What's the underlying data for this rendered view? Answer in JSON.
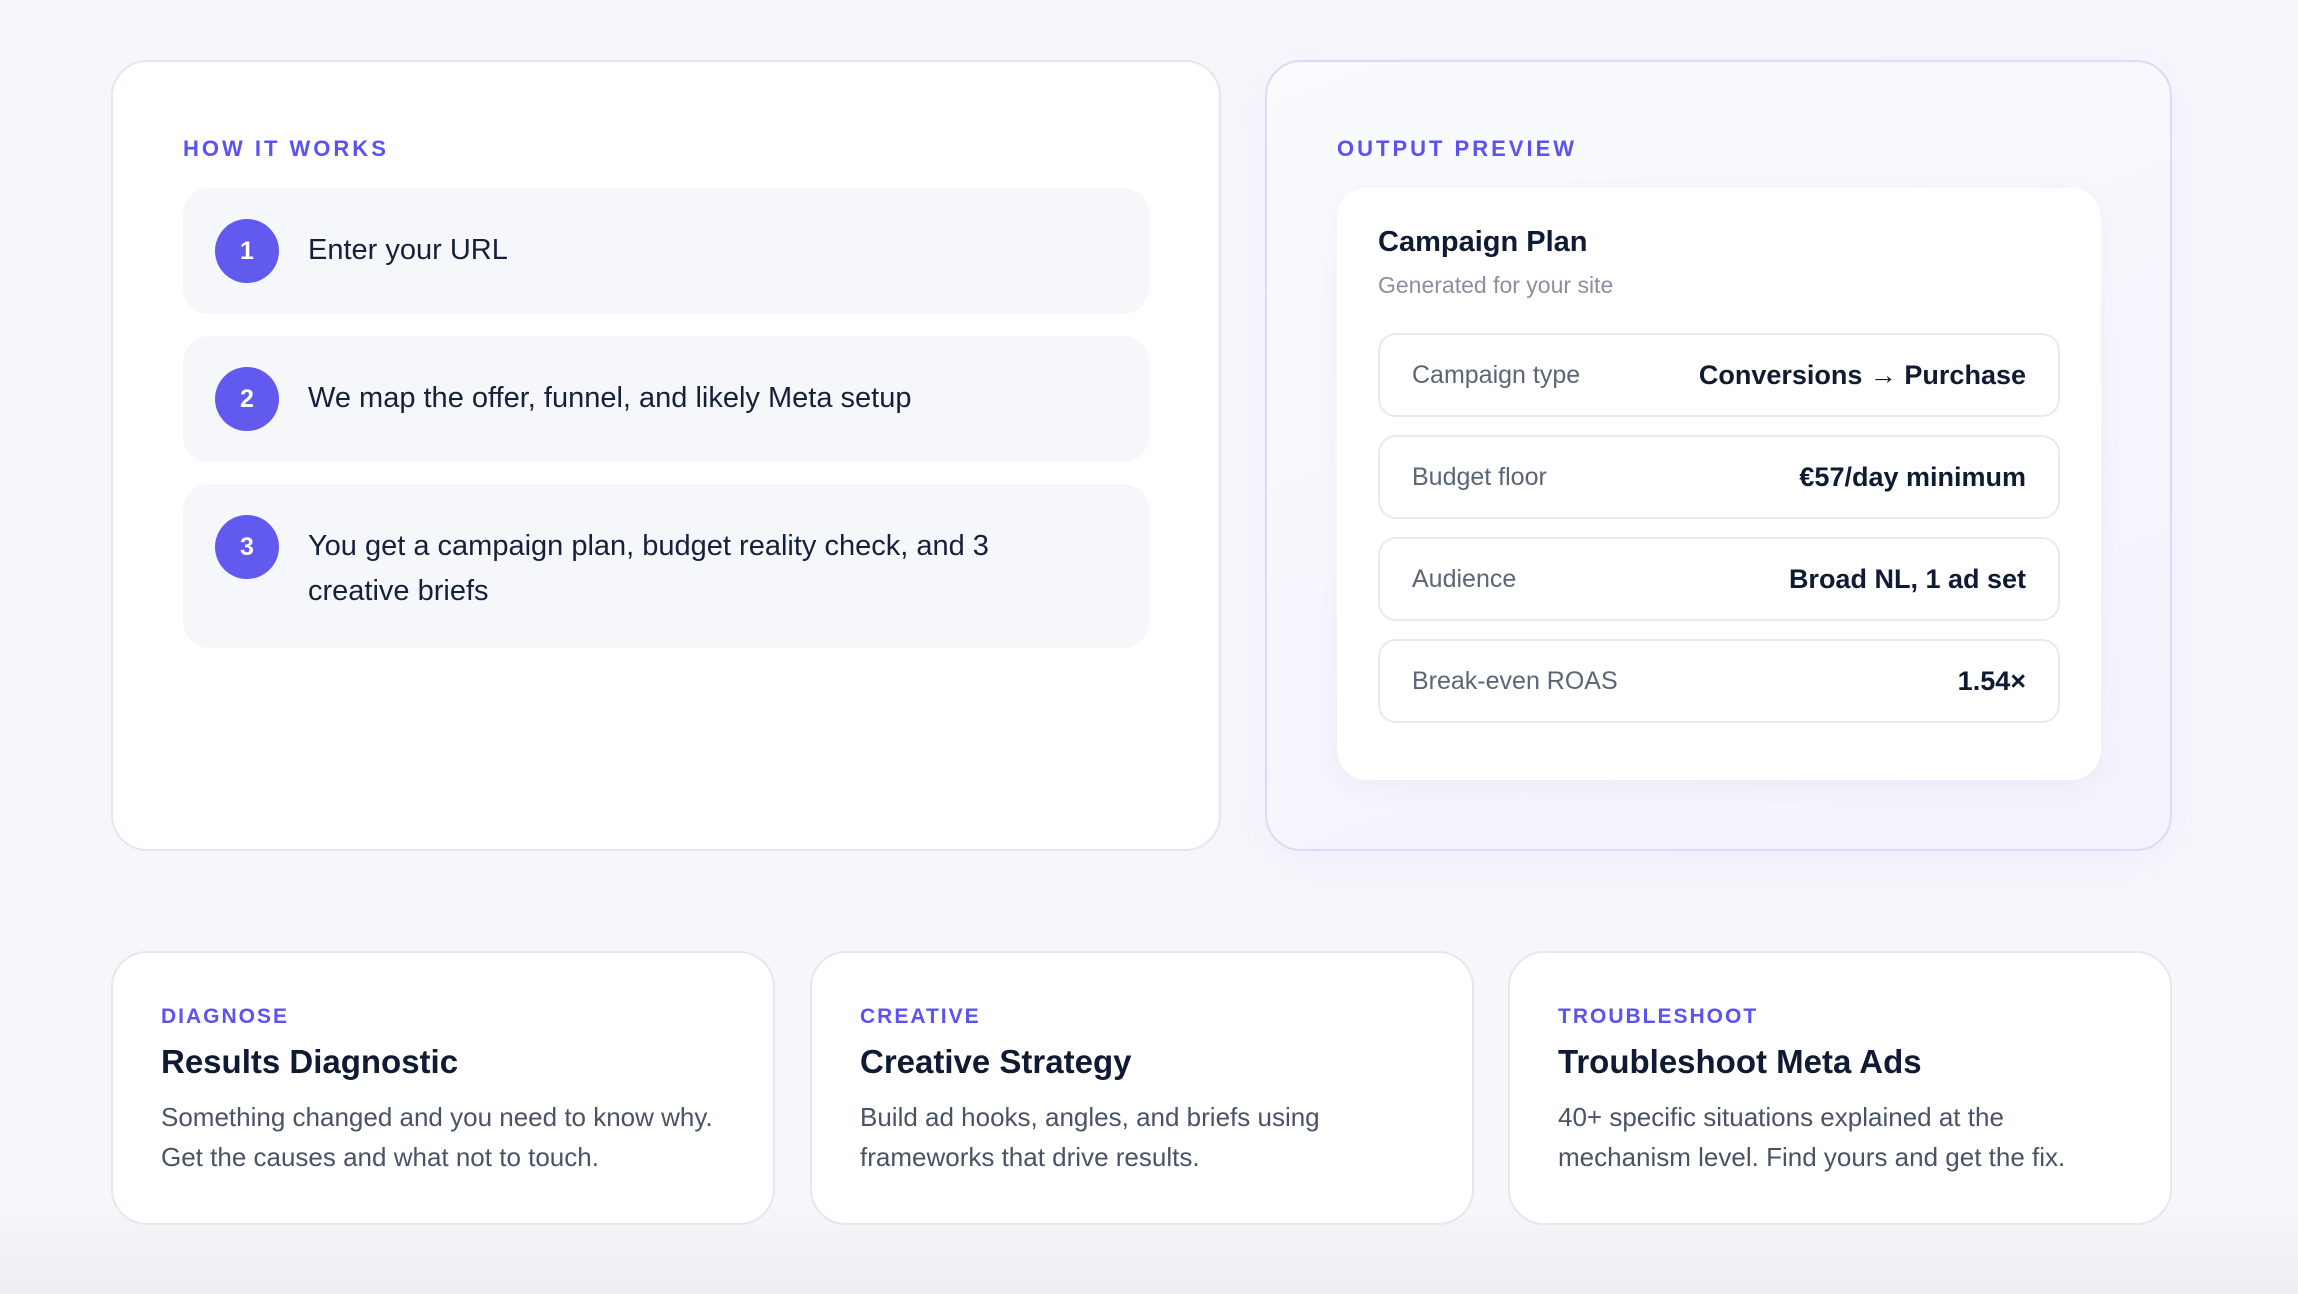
{
  "how_it_works": {
    "heading": "HOW IT WORKS",
    "steps": [
      {
        "number": "1",
        "text": "Enter your URL"
      },
      {
        "number": "2",
        "text": "We map the offer, funnel, and likely Meta setup"
      },
      {
        "number": "3",
        "text": "You get a campaign plan, budget reality check, and 3 creative briefs"
      }
    ]
  },
  "output_preview": {
    "heading": "OUTPUT PREVIEW",
    "title": "Campaign Plan",
    "subtitle": "Generated for your site",
    "rows": [
      {
        "label": "Campaign type",
        "value": "Conversions → Purchase"
      },
      {
        "label": "Budget floor",
        "value": "€57/day minimum"
      },
      {
        "label": "Audience",
        "value": "Broad NL, 1 ad set"
      },
      {
        "label": "Break-even ROAS",
        "value": "1.54×"
      }
    ]
  },
  "features": [
    {
      "label": "DIAGNOSE",
      "title": "Results Diagnostic",
      "description": "Something changed and you need to know why. Get the causes and what not to touch."
    },
    {
      "label": "CREATIVE",
      "title": "Creative Strategy",
      "description": "Build ad hooks, angles, and briefs using frameworks that drive results."
    },
    {
      "label": "TROUBLESHOOT",
      "title": "Troubleshoot Meta Ads",
      "description": "40+ specific situations explained at the mechanism level. Find yours and get the fix."
    }
  ],
  "colors": {
    "accent": "#5b53f0",
    "step_badge": "#6259ef",
    "text": "#0f1b33",
    "background": "#f6f7fb"
  }
}
